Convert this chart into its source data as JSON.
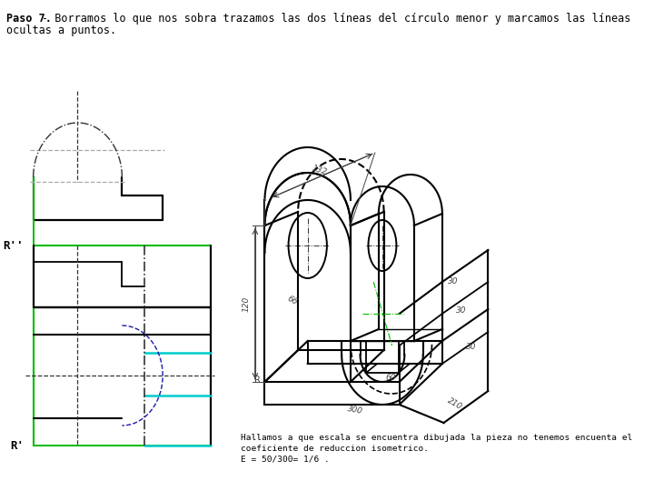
{
  "bg_color": "#ffffff",
  "lc": "#000000",
  "gc": "#00bb00",
  "cc": "#00cccc",
  "bc": "#1a1aaa",
  "grc": "#aaaaaa",
  "dc": "#333333",
  "title_bold": "Paso 7.",
  "title_rest": "- Borramos lo que nos sobra trazamos las dos líneas del círculo menor y marcamos las líneas",
  "title_line2": "ocultas a puntos.",
  "bottom1": "Hallamos a que escala se encuentra dibujada la pieza no tenemos encuenta el",
  "bottom2": "coeficiente de reduccion isometrico.",
  "bottom3": "E = 50/300= 1/6 ."
}
